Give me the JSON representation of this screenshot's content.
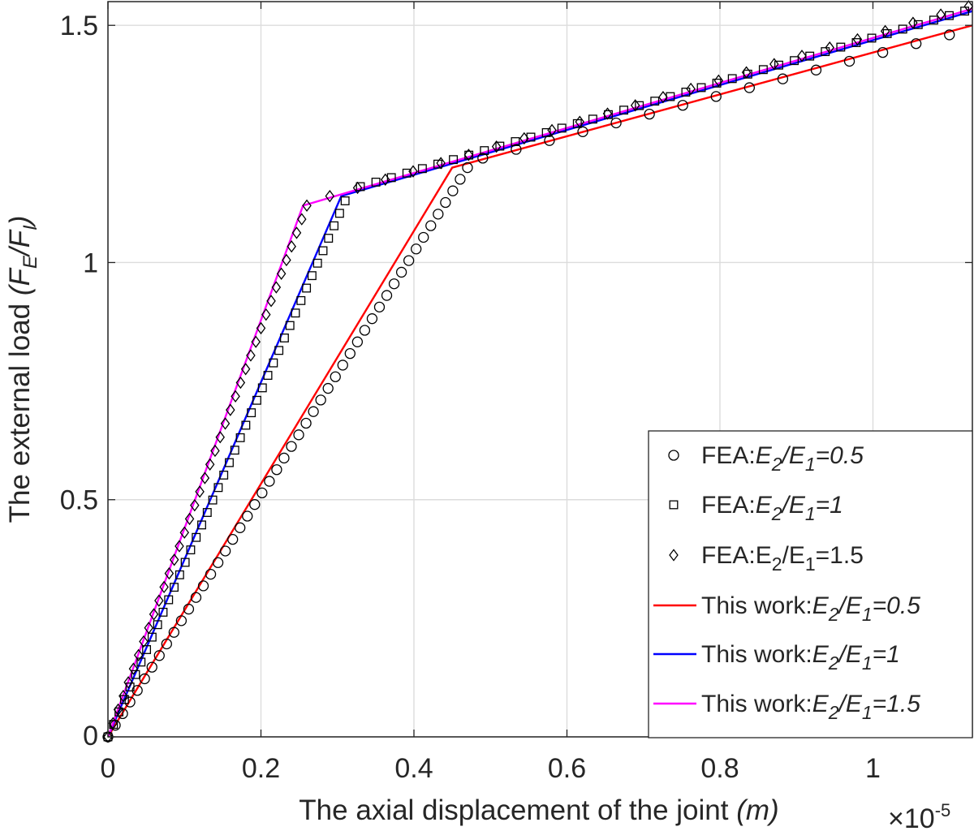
{
  "chart_data": {
    "type": "line",
    "xlabel": "The axial displacement of the joint (m)",
    "ylabel": "The external load (FE/FI)",
    "xlim": [
      0,
      1.13
    ],
    "ylim": [
      0,
      1.55
    ],
    "x_exponent_label": "×10⁻⁵",
    "xticks": [
      0,
      0.2,
      0.4,
      0.6,
      0.8,
      1
    ],
    "xtick_labels": [
      "0",
      "0.2",
      "0.4",
      "0.6",
      "0.8",
      "1"
    ],
    "yticks": [
      0,
      0.5,
      1,
      1.5
    ],
    "ytick_labels": [
      "0",
      "0.5",
      "1",
      "1.5"
    ],
    "grid": true,
    "legend_placement": "bottom-right",
    "series": [
      {
        "name": "FEA:E2/E1=0.5",
        "kind": "markers",
        "marker": "circle",
        "color": "#000000",
        "segments": [
          {
            "x0": 0,
            "x1": 0.47,
            "y0": 0,
            "y1": 1.2,
            "n": 50
          },
          {
            "x0": 0.49,
            "x1": 1.1,
            "y0": 1.22,
            "y1": 1.48,
            "n": 15
          }
        ]
      },
      {
        "name": "FEA:E2/E1=1",
        "kind": "markers",
        "marker": "square",
        "color": "#000000",
        "segments": [
          {
            "x0": 0,
            "x1": 0.31,
            "y0": 0,
            "y1": 1.13,
            "n": 44
          },
          {
            "x0": 0.33,
            "x1": 1.12,
            "y0": 1.16,
            "y1": 1.53,
            "n": 40
          }
        ]
      },
      {
        "name": "FEA:E2/E1=1.5",
        "kind": "markers",
        "marker": "diamond",
        "color": "#000000",
        "segments": [
          {
            "x0": 0,
            "x1": 0.26,
            "y0": 0,
            "y1": 1.12,
            "n": 40
          },
          {
            "x0": 0.29,
            "x1": 1.125,
            "y0": 1.14,
            "y1": 1.54,
            "n": 24
          }
        ]
      },
      {
        "name": "This work:E2/E1=0.5",
        "kind": "line",
        "color": "#ff0000",
        "x": [
          0,
          0.45,
          1.13
        ],
        "y": [
          0,
          1.2,
          1.5
        ]
      },
      {
        "name": "This work:E2/E1=1",
        "kind": "line",
        "color": "#0000ff",
        "x": [
          0,
          0.305,
          1.13
        ],
        "y": [
          0,
          1.14,
          1.53
        ]
      },
      {
        "name": "This work:E2/E1=1.5",
        "kind": "line",
        "color": "#ff00ff",
        "x": [
          0,
          0.255,
          1.13
        ],
        "y": [
          0,
          1.12,
          1.535
        ]
      }
    ]
  },
  "legend": [
    {
      "pre": "FEA:",
      "a": "E",
      "asub": "2",
      "mid": "/",
      "b": "E",
      "bsub": "1",
      "post": "=0.5",
      "italic": true
    },
    {
      "pre": "FEA:",
      "a": "E",
      "asub": "2",
      "mid": "/",
      "b": "E",
      "bsub": "1",
      "post": "=1",
      "italic": true
    },
    {
      "pre": "FEA:",
      "a": "E",
      "asub": "2",
      "mid": "/",
      "b": "E",
      "bsub": "1",
      "post": "=1.5",
      "italic": false
    },
    {
      "pre": "This work:",
      "a": "E",
      "asub": "2",
      "mid": "/",
      "b": "E",
      "bsub": "1",
      "post": "=0.5",
      "italic": true
    },
    {
      "pre": "This work:",
      "a": "E",
      "asub": "2",
      "mid": "/",
      "b": "E",
      "bsub": "1",
      "post": "=1",
      "italic": true
    },
    {
      "pre": "This work:",
      "a": "E",
      "asub": "2",
      "mid": "/",
      "b": "E",
      "bsub": "1",
      "post": "=1.5",
      "italic": true
    }
  ],
  "xlabel_parts": {
    "main": "The axial displacement of the joint ",
    "unit": "(m)"
  },
  "ylabel_parts": {
    "main": "The external load ",
    "open": "(",
    "num": "F",
    "numsub": "E",
    "slash": "/",
    "den": "F",
    "densub": "I",
    "close": ")"
  },
  "exponent_parts": {
    "base": "×10",
    "exp": "-5"
  }
}
